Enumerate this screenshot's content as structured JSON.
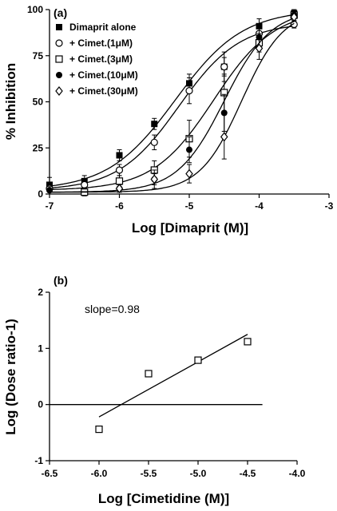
{
  "chart_data": [
    {
      "type": "scatter",
      "panel_label": "(a)",
      "xlabel": "Log [Dimaprit (M)]",
      "ylabel": "% Inhibition",
      "xlim": [
        -7,
        -3
      ],
      "ylim": [
        0,
        100
      ],
      "x_ticks": [
        -7,
        -6,
        -5,
        -4,
        -3
      ],
      "y_ticks": [
        0,
        25,
        50,
        75,
        100
      ],
      "x_tick_labels": [
        "-7",
        "-6",
        "-5",
        "-4",
        "-3"
      ],
      "y_tick_labels": [
        "0",
        "25",
        "50",
        "75",
        "100"
      ],
      "legend_position": "top-left",
      "error_bars": true,
      "fitted_curves": true,
      "series": [
        {
          "name": "Dimaprit alone",
          "marker": "filled-square",
          "x": [
            -7,
            -6.5,
            -6,
            -5.5,
            -5,
            -4.5,
            -4,
            -3.5
          ],
          "y": [
            5,
            7,
            21,
            38,
            60,
            69,
            91,
            98
          ],
          "err": [
            4,
            3,
            3,
            3,
            5,
            5,
            4,
            2
          ],
          "curve": {
            "bottom": 2,
            "top": 100,
            "logEC50": -5.2,
            "hill": 0.9
          }
        },
        {
          "name": "+ Cimet.(1μM)",
          "marker": "open-circle",
          "x": [
            -7,
            -6.5,
            -6,
            -5.5,
            -5,
            -4.5,
            -4,
            -3.5
          ],
          "y": [
            3,
            5,
            13,
            28,
            56,
            69,
            87,
            92
          ],
          "err": [
            3,
            3,
            3,
            4,
            7,
            8,
            5,
            2
          ],
          "curve": {
            "bottom": 2,
            "top": 93,
            "logEC50": -5.15,
            "hill": 1.0
          }
        },
        {
          "name": "+ Cimet.(3μM)",
          "marker": "open-square",
          "x": [
            -6.5,
            -6,
            -5.5,
            -5,
            -4.5,
            -4,
            -3.5
          ],
          "y": [
            1,
            7,
            13,
            30,
            55,
            82,
            97
          ],
          "err": [
            2,
            3,
            5,
            10,
            10,
            5,
            2
          ],
          "curve": {
            "bottom": 2,
            "top": 100,
            "logEC50": -4.65,
            "hill": 1.0
          }
        },
        {
          "name": "+ Cimet.(10μM)",
          "marker": "filled-circle",
          "x": [
            -7,
            -6,
            -5.5,
            -5,
            -4.5,
            -4,
            -3.5
          ],
          "y": [
            2,
            3,
            8,
            24,
            44,
            85,
            97
          ],
          "err": [
            2,
            2,
            5,
            7,
            10,
            5,
            3
          ],
          "curve": {
            "bottom": 1,
            "top": 100,
            "logEC50": -4.5,
            "hill": 1.3
          }
        },
        {
          "name": "+ Cimet.(30μM)",
          "marker": "open-diamond",
          "x": [
            -6,
            -5.5,
            -5,
            -4.5,
            -4,
            -3.5
          ],
          "y": [
            3,
            8,
            11,
            31,
            79,
            96
          ],
          "err": [
            2,
            3,
            5,
            12,
            6,
            2
          ],
          "curve": {
            "bottom": 1,
            "top": 100,
            "logEC50": -4.25,
            "hill": 1.45
          }
        }
      ]
    },
    {
      "type": "scatter",
      "panel_label": "(b)",
      "xlabel": "Log [Cimetidine (M)]",
      "ylabel": "Log (Dose ratio-1)",
      "xlim": [
        -6.5,
        -4.0
      ],
      "ylim": [
        -1,
        2
      ],
      "x_ticks": [
        -6.5,
        -6.0,
        -5.5,
        -5.0,
        -4.5,
        -4.0
      ],
      "y_ticks": [
        -1,
        0,
        1,
        2
      ],
      "x_tick_labels": [
        "-6.5",
        "-6.0",
        "-5.5",
        "-5.0",
        "-4.5",
        "-4.0"
      ],
      "y_tick_labels": [
        "-1",
        "0",
        "1",
        "2"
      ],
      "annotation": "slope=0.98",
      "zero_line": true,
      "series": [
        {
          "marker": "open-square",
          "x": [
            -6.0,
            -5.5,
            -5.0,
            -4.5
          ],
          "y": [
            -0.44,
            0.55,
            0.79,
            1.12
          ]
        }
      ],
      "regression_line": {
        "x": [
          -6.0,
          -4.5
        ],
        "y": [
          -0.22,
          1.25
        ]
      }
    }
  ]
}
